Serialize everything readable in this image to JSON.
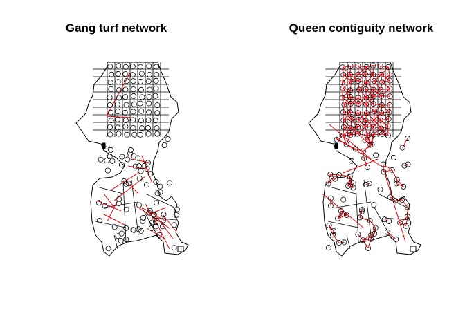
{
  "panels": [
    {
      "title": "Gang turf network",
      "network": "gang"
    },
    {
      "title": "Queen contiguity network",
      "network": "queen"
    }
  ],
  "colors": {
    "outline": "#000000",
    "edge": "#e8000b",
    "node": "#000000",
    "background": "#ffffff"
  }
}
